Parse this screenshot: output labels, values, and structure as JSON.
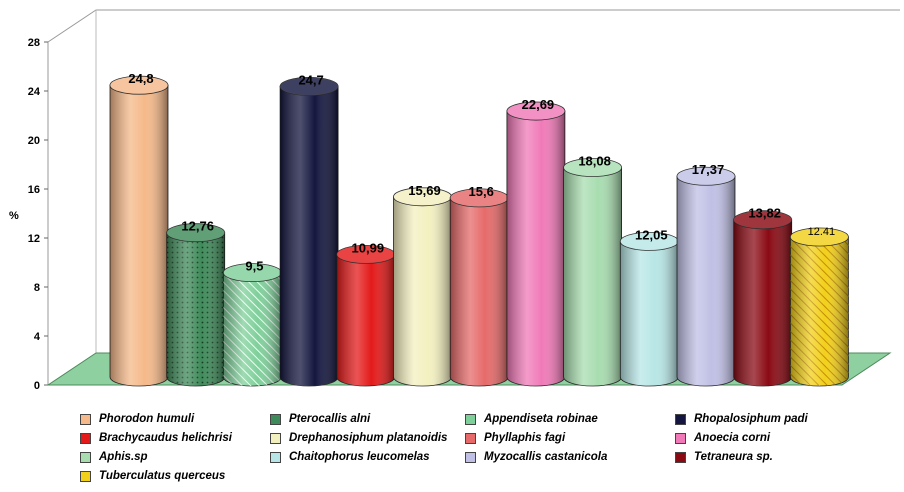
{
  "chart_data": {
    "type": "bar",
    "title": "",
    "xlabel": "",
    "ylabel": "%",
    "ylim": [
      0,
      28
    ],
    "yticks": [
      0,
      4,
      8,
      12,
      16,
      20,
      24,
      28
    ],
    "ytick_labels": [
      "0",
      "4",
      "8",
      "12",
      "16",
      "20",
      "24",
      "28"
    ],
    "grid": false,
    "style": "3d-cylinder",
    "legend_placement": "bottom",
    "categories": [
      "Phorodon humuli",
      "Pterocallis alni",
      "Appendiseta robinae",
      "Rhopalosiphum padi",
      "Brachycaudus helichrisi",
      "Drephanosiphum platanoidis",
      "Phyllaphis fagi",
      "Anoecia corni",
      "Aphis.sp",
      "Chaitophorus leucomelas",
      "Myzocallis castanicola",
      "Tetraneura sp.",
      "Tuberculatus querceus"
    ],
    "values": [
      24.8,
      12.76,
      9.5,
      24.7,
      10.99,
      15.69,
      15.6,
      22.69,
      18.08,
      12.05,
      17.37,
      13.82,
      12.41
    ],
    "value_labels": [
      "24,8",
      "12,76",
      "9,5",
      "24,7",
      "10,99",
      "15,69",
      "15,6",
      "22,69",
      "18,08",
      "12,05",
      "17,37",
      "13,82",
      "12.41"
    ],
    "colors": [
      "#f5b98a",
      "#3f8a5a",
      "#7fcf9a",
      "#14163f",
      "#e41a1a",
      "#f3f0c0",
      "#e66a6a",
      "#f07ab8",
      "#a8ddb0",
      "#b8e6e6",
      "#c0c0e6",
      "#8a0a14",
      "#f2d01a"
    ],
    "patterns": [
      "none",
      "dots",
      "stripes",
      "none",
      "none",
      "none",
      "none",
      "none",
      "none",
      "none",
      "none",
      "none",
      "stripes"
    ],
    "floor_color": "#8fd0a0"
  }
}
